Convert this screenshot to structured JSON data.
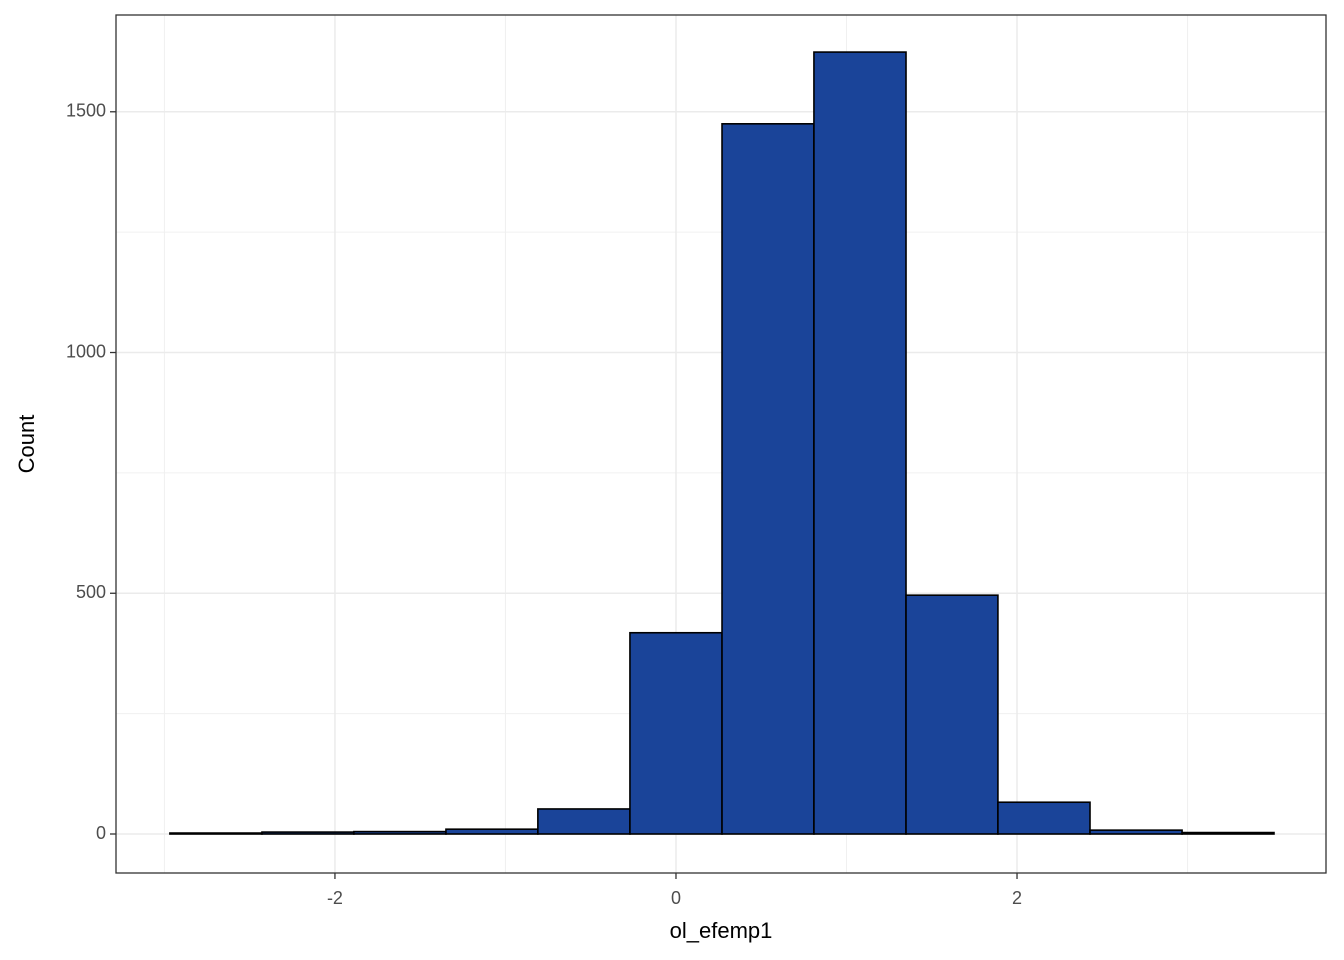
{
  "chart_data": {
    "type": "histogram",
    "x_label": "ol_efemp1",
    "y_label": "Count",
    "bins": [
      -2.968,
      -2.428,
      -1.889,
      -1.349,
      -0.81,
      -0.27,
      0.27,
      0.809,
      1.349,
      1.888,
      2.428,
      2.968,
      3.507
    ],
    "values": [
      2,
      4,
      5,
      10,
      52,
      418,
      1475,
      1624,
      496,
      66,
      8,
      3
    ],
    "color": "#1a4499",
    "edge_color": "#000000",
    "xlim": [
      -3.284,
      3.812
    ],
    "ylim": [
      -81,
      1701
    ],
    "xticks": [
      -2,
      0,
      2
    ],
    "yticks": [
      0,
      500,
      1000,
      1500
    ],
    "grid": true
  }
}
